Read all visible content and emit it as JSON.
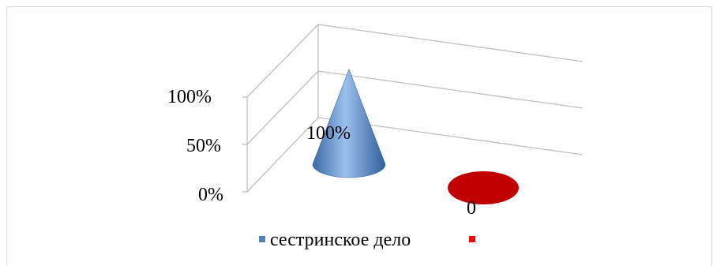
{
  "chart_data": {
    "type": "bar",
    "subtype": "3d-cone",
    "title": "",
    "xlabel": "",
    "ylabel": "",
    "ylim": [
      0,
      1
    ],
    "y_tick_labels": [
      "0%",
      "50%",
      "100%"
    ],
    "grid": true,
    "legend_position": "bottom",
    "series": [
      {
        "name": "сестринское дело",
        "color": "#4f81bd",
        "value": 1,
        "data_label": "100%"
      },
      {
        "name": "",
        "color": "#c00000",
        "value": 0,
        "data_label": "0"
      }
    ]
  }
}
